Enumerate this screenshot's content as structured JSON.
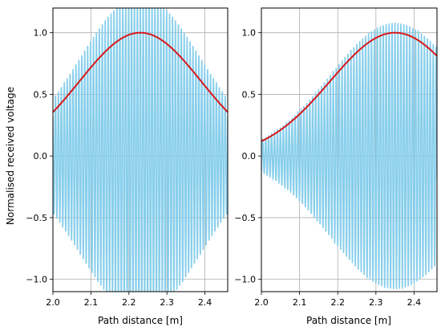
{
  "chart_data": [
    {
      "type": "line",
      "xlabel": "Path distance [m]",
      "ylabel": "Normalised received voltage",
      "xlim": [
        2.0,
        2.46
      ],
      "ylim": [
        -1.1,
        1.2
      ],
      "xticks": [
        "2.0",
        "2.1",
        "2.2",
        "2.3",
        "2.4"
      ],
      "yticks": [
        "−1.0",
        "−0.5",
        "0.0",
        "0.5",
        "1.0"
      ],
      "grid": true,
      "series": [
        {
          "color": "#87ceeb",
          "kind": "oscillation",
          "envelope_peak_x": 2.23,
          "envelope_width": 0.16,
          "envelope_peak": 1.3,
          "oscillation_period": 0.0077,
          "x_range": [
            2.0,
            2.46
          ]
        },
        {
          "color": "#d7191c",
          "kind": "envelope",
          "peak_x": 2.23,
          "peak_y": 1.0,
          "width": 0.16,
          "x_range": [
            2.0,
            2.46
          ]
        }
      ]
    },
    {
      "type": "line",
      "xlabel": "Path distance [m]",
      "ylabel": "",
      "xlim": [
        2.0,
        2.46
      ],
      "ylim": [
        -1.1,
        1.2
      ],
      "xticks": [
        "2.0",
        "2.1",
        "2.2",
        "2.3",
        "2.4"
      ],
      "yticks": [
        "−1.0",
        "−0.5",
        "0.0",
        "0.5",
        "1.0"
      ],
      "grid": true,
      "series": [
        {
          "color": "#87ceeb",
          "kind": "oscillation",
          "envelope_peak_x": 2.35,
          "envelope_width": 0.17,
          "envelope_peak": 1.08,
          "oscillation_period": 0.0077,
          "x_range": [
            2.0,
            2.46
          ]
        },
        {
          "color": "#d7191c",
          "kind": "envelope",
          "peak_x": 2.35,
          "peak_y": 1.0,
          "width": 0.17,
          "x_range": [
            2.0,
            2.46
          ]
        }
      ]
    }
  ]
}
